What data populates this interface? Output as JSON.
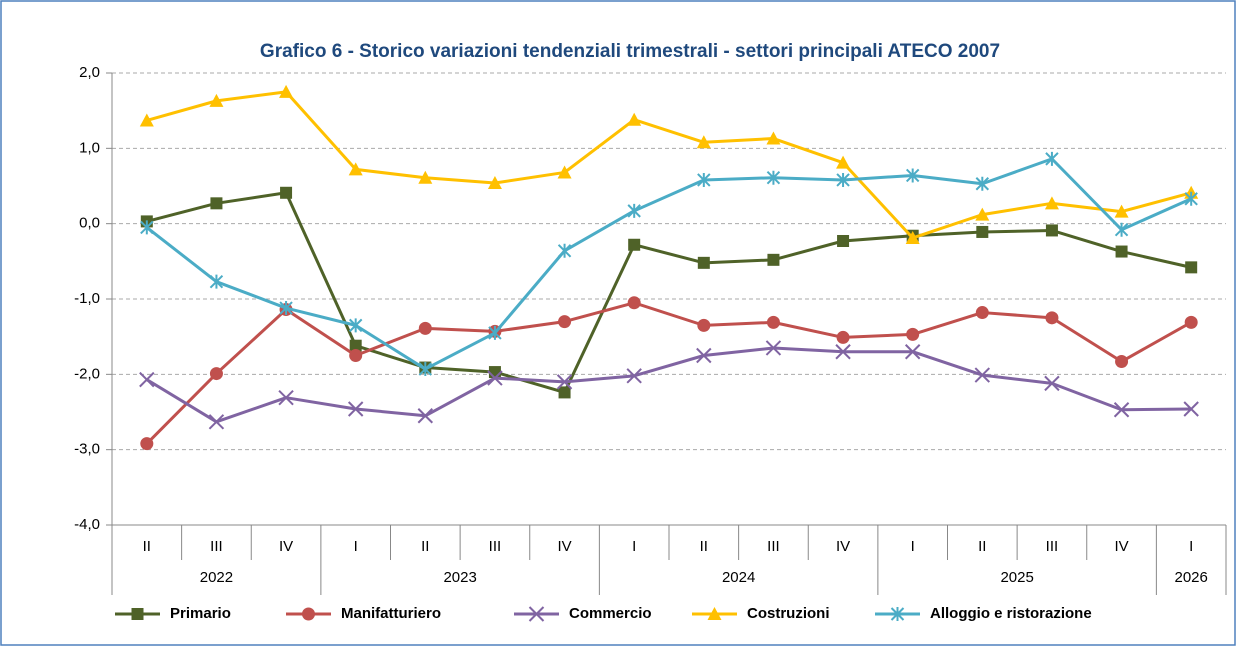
{
  "chart_data": {
    "type": "line",
    "title": "Grafico 6 - Storico variazioni tendenziali trimestrali - settori principali ATECO 2007",
    "categories": [
      "II",
      "III",
      "IV",
      "I",
      "II",
      "III",
      "IV",
      "I",
      "II",
      "III",
      "IV",
      "I",
      "II",
      "III",
      "IV",
      "I"
    ],
    "x_groups": [
      "2022",
      null,
      null,
      "2023",
      null,
      null,
      null,
      "2024",
      null,
      null,
      null,
      "2025",
      null,
      null,
      null,
      "2026"
    ],
    "ylim": [
      -4,
      2
    ],
    "yticks": [
      {
        "value": -4,
        "label": "-4,0"
      },
      {
        "value": -3,
        "label": "-3,0"
      },
      {
        "value": -2,
        "label": "-2,0"
      },
      {
        "value": -1,
        "label": "-1,0"
      },
      {
        "value": 0,
        "label": "0,0"
      },
      {
        "value": 1,
        "label": "1,0"
      },
      {
        "value": 2,
        "label": "2,0"
      }
    ],
    "grid": true,
    "legend": "bottom",
    "series": [
      {
        "name": "Primario",
        "color": "#4f6228",
        "marker": "square",
        "values": [
          0.03,
          0.27,
          0.41,
          -1.62,
          -1.91,
          -1.97,
          -2.24,
          -0.28,
          -0.52,
          -0.48,
          -0.23,
          -0.16,
          -0.11,
          -0.09,
          -0.37,
          -0.58
        ]
      },
      {
        "name": "Manifatturiero",
        "color": "#c0504d",
        "marker": "circle",
        "values": [
          -2.92,
          -1.99,
          -1.14,
          -1.75,
          -1.39,
          -1.43,
          -1.3,
          -1.05,
          -1.35,
          -1.31,
          -1.51,
          -1.47,
          -1.18,
          -1.25,
          -1.83,
          -1.31
        ]
      },
      {
        "name": "Commercio",
        "color": "#8064a2",
        "marker": "x",
        "values": [
          -2.07,
          -2.63,
          -2.31,
          -2.46,
          -2.55,
          -2.05,
          -2.1,
          -2.02,
          -1.75,
          -1.65,
          -1.7,
          -1.7,
          -2.01,
          -2.12,
          -2.47,
          -2.46
        ]
      },
      {
        "name": "Costruzioni",
        "color": "#ffc000",
        "marker": "triangle",
        "values": [
          1.37,
          1.63,
          1.75,
          0.72,
          0.61,
          0.54,
          0.68,
          1.38,
          1.08,
          1.13,
          0.81,
          -0.19,
          0.12,
          0.27,
          0.16,
          0.41
        ]
      },
      {
        "name": "Alloggio e ristorazione",
        "color": "#4bacc6",
        "marker": "star",
        "values": [
          -0.05,
          -0.77,
          -1.12,
          -1.35,
          -1.93,
          -1.45,
          -0.36,
          0.17,
          0.58,
          0.61,
          0.58,
          0.64,
          0.53,
          0.86,
          -0.08,
          0.33
        ]
      }
    ]
  }
}
